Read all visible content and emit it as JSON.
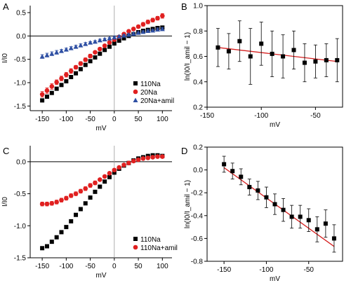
{
  "colors": {
    "black": "#000000",
    "red": "#e02020",
    "blue": "#2e4fa3",
    "fit": "#d62020"
  },
  "chart_data": [
    {
      "panel": "A",
      "type": "scatter",
      "xlabel": "mV",
      "ylabel": "I/I0",
      "xlim": [
        -175,
        120
      ],
      "ylim": [
        -1.6,
        0.65
      ],
      "xticks": [
        -150,
        -100,
        -50,
        0,
        50,
        100
      ],
      "yticks": [
        0.5,
        0.0,
        -0.5,
        -1.0,
        -1.5
      ],
      "xtick_labels": [
        "-150",
        "-100",
        "-50",
        "0",
        "50",
        "100"
      ],
      "ytick_labels": [
        "0.5",
        "0.0",
        "-0.5",
        "-1.0",
        "-1.5"
      ],
      "zero_line": true,
      "legend": "bottom-right",
      "series": [
        {
          "name": "110Na",
          "marker": "square",
          "color": "#000000",
          "x": [
            -150,
            -140,
            -130,
            -120,
            -110,
            -100,
            -90,
            -80,
            -70,
            -60,
            -50,
            -40,
            -30,
            -20,
            -10,
            0,
            10,
            20,
            30,
            40,
            50,
            60,
            70,
            80,
            90,
            100
          ],
          "y": [
            -1.38,
            -1.3,
            -1.22,
            -1.13,
            -1.05,
            -0.97,
            -0.88,
            -0.8,
            -0.71,
            -0.62,
            -0.54,
            -0.46,
            -0.38,
            -0.3,
            -0.23,
            -0.16,
            -0.1,
            -0.05,
            0.0,
            0.04,
            0.08,
            0.11,
            0.13,
            0.15,
            0.17,
            0.18
          ],
          "err": []
        },
        {
          "name": "20Na",
          "marker": "circle",
          "color": "#e02020",
          "x": [
            -150,
            -140,
            -130,
            -120,
            -110,
            -100,
            -90,
            -80,
            -70,
            -60,
            -50,
            -40,
            -30,
            -20,
            -10,
            0,
            10,
            20,
            30,
            40,
            50,
            60,
            70,
            80,
            90,
            100
          ],
          "y": [
            -1.25,
            -1.17,
            -1.08,
            -0.99,
            -0.91,
            -0.83,
            -0.75,
            -0.67,
            -0.59,
            -0.51,
            -0.43,
            -0.35,
            -0.28,
            -0.21,
            -0.14,
            -0.08,
            -0.02,
            0.04,
            0.1,
            0.15,
            0.2,
            0.25,
            0.3,
            0.34,
            0.38,
            0.43
          ],
          "err": [
            0.06,
            0.06,
            0.06,
            0.05,
            0.05,
            0.05,
            0.05,
            0.04,
            0.04,
            0.04,
            0.04,
            0.03,
            0.03,
            0.03,
            0.03,
            0.03,
            0.03,
            0.03,
            0.03,
            0.03,
            0.03,
            0.04,
            0.04,
            0.04,
            0.04,
            0.05
          ]
        },
        {
          "name": "20Na+amil",
          "marker": "triangle",
          "color": "#2e4fa3",
          "x": [
            -150,
            -140,
            -130,
            -120,
            -110,
            -100,
            -90,
            -80,
            -70,
            -60,
            -50,
            -40,
            -30,
            -20,
            -10,
            0,
            10,
            20,
            30,
            40,
            50,
            60,
            70,
            80,
            90,
            100
          ],
          "y": [
            -0.44,
            -0.41,
            -0.38,
            -0.35,
            -0.32,
            -0.29,
            -0.26,
            -0.23,
            -0.2,
            -0.17,
            -0.14,
            -0.12,
            -0.09,
            -0.07,
            -0.05,
            -0.03,
            -0.01,
            0.01,
            0.03,
            0.05,
            0.07,
            0.09,
            0.11,
            0.12,
            0.14,
            0.15
          ],
          "err": [
            0.04,
            0.04,
            0.04,
            0.04,
            0.03,
            0.03,
            0.03,
            0.03,
            0.03,
            0.03,
            0.02,
            0.02,
            0.02,
            0.02,
            0.02,
            0.02,
            0.02,
            0.02,
            0.02,
            0.02,
            0.02,
            0.02,
            0.02,
            0.02,
            0.03,
            0.03
          ]
        }
      ]
    },
    {
      "panel": "B",
      "type": "scatter",
      "xlabel": "mV",
      "ylabel": "ln(I0/I_amil − 1)",
      "xlim": [
        -150,
        -25
      ],
      "ylim": [
        0.2,
        1.0
      ],
      "xticks": [
        -150,
        -100,
        -50
      ],
      "yticks": [
        1.0,
        0.8,
        0.6,
        0.4,
        0.2
      ],
      "xtick_labels": [
        "-150",
        "-100",
        "-50"
      ],
      "ytick_labels": [
        "1.0",
        "0.8",
        "0.6",
        "0.4",
        "0.2"
      ],
      "fit_line": {
        "x": [
          -140,
          -30
        ],
        "y": [
          0.67,
          0.56
        ]
      },
      "series": [
        {
          "name": "",
          "marker": "square",
          "color": "#000000",
          "x": [
            -140,
            -130,
            -120,
            -110,
            -100,
            -90,
            -80,
            -70,
            -60,
            -50,
            -40,
            -30
          ],
          "y": [
            0.67,
            0.64,
            0.72,
            0.6,
            0.7,
            0.62,
            0.6,
            0.65,
            0.55,
            0.56,
            0.57,
            0.57
          ],
          "err": [
            0.15,
            0.14,
            0.16,
            0.22,
            0.17,
            0.18,
            0.17,
            0.15,
            0.15,
            0.13,
            0.13,
            0.17
          ]
        }
      ]
    },
    {
      "panel": "C",
      "type": "scatter",
      "xlabel": "mV",
      "ylabel": "I/I0",
      "xlim": [
        -175,
        120
      ],
      "ylim": [
        -1.5,
        0.25
      ],
      "xticks": [
        -150,
        -100,
        -50,
        0,
        50,
        100
      ],
      "yticks": [
        0.0,
        -0.5,
        -1.0,
        -1.5
      ],
      "xtick_labels": [
        "-150",
        "-100",
        "-50",
        "0",
        "50",
        "100"
      ],
      "ytick_labels": [
        "0.0",
        "-0.5",
        "-1.0",
        "-1.5"
      ],
      "zero_line": true,
      "legend": "bottom-right",
      "series": [
        {
          "name": "110Na",
          "marker": "square",
          "color": "#000000",
          "x": [
            -150,
            -140,
            -130,
            -120,
            -110,
            -100,
            -90,
            -80,
            -70,
            -60,
            -50,
            -40,
            -30,
            -20,
            -10,
            0,
            10,
            20,
            30,
            40,
            50,
            60,
            70,
            80,
            90,
            100
          ],
          "y": [
            -1.35,
            -1.32,
            -1.25,
            -1.18,
            -1.1,
            -1.02,
            -0.93,
            -0.83,
            -0.74,
            -0.65,
            -0.56,
            -0.47,
            -0.39,
            -0.31,
            -0.24,
            -0.17,
            -0.11,
            -0.06,
            -0.02,
            0.02,
            0.05,
            0.07,
            0.09,
            0.1,
            0.1,
            0.09
          ],
          "err": []
        },
        {
          "name": "110Na+amil",
          "marker": "circle",
          "color": "#e02020",
          "x": [
            -150,
            -140,
            -130,
            -120,
            -110,
            -100,
            -90,
            -80,
            -70,
            -60,
            -50,
            -40,
            -30,
            -20,
            -10,
            0,
            10,
            20,
            30,
            40,
            50,
            60,
            70,
            80,
            90,
            100
          ],
          "y": [
            -0.66,
            -0.66,
            -0.65,
            -0.63,
            -0.6,
            -0.57,
            -0.53,
            -0.5,
            -0.46,
            -0.42,
            -0.37,
            -0.33,
            -0.28,
            -0.23,
            -0.18,
            -0.13,
            -0.09,
            -0.05,
            -0.02,
            0.01,
            0.03,
            0.05,
            0.06,
            0.07,
            0.08,
            0.08
          ],
          "err": [
            0.03,
            0.03,
            0.03,
            0.03,
            0.03,
            0.03,
            0.03,
            0.03,
            0.03,
            0.03,
            0.03,
            0.03,
            0.02,
            0.02,
            0.02,
            0.02,
            0.02,
            0.02,
            0.02,
            0.02,
            0.02,
            0.02,
            0.02,
            0.02,
            0.02,
            0.02
          ]
        }
      ]
    },
    {
      "panel": "D",
      "type": "scatter",
      "xlabel": "mV",
      "ylabel": "ln(I0/I_amil − 1)",
      "xlim": [
        -170,
        -10
      ],
      "ylim": [
        -0.8,
        0.2
      ],
      "xticks": [
        -150,
        -100,
        -50
      ],
      "yticks": [
        0.2,
        0.0,
        -0.2,
        -0.4,
        -0.6,
        -0.8
      ],
      "xtick_labels": [
        "-150",
        "-100",
        "-50"
      ],
      "ytick_labels": [
        "0.2",
        "0.0",
        "-0.2",
        "-0.4",
        "-0.6",
        "-0.8"
      ],
      "fit_line": {
        "x": [
          -150,
          -20
        ],
        "y": [
          0.02,
          -0.67
        ]
      },
      "series": [
        {
          "name": "",
          "marker": "square",
          "color": "#000000",
          "x": [
            -150,
            -140,
            -130,
            -120,
            -110,
            -100,
            -90,
            -80,
            -70,
            -60,
            -50,
            -40,
            -30,
            -20
          ],
          "y": [
            0.05,
            -0.01,
            -0.06,
            -0.15,
            -0.18,
            -0.24,
            -0.3,
            -0.35,
            -0.41,
            -0.41,
            -0.44,
            -0.52,
            -0.47,
            -0.6
          ],
          "err": [
            0.07,
            0.07,
            0.07,
            0.07,
            0.08,
            0.09,
            0.09,
            0.1,
            0.1,
            0.1,
            0.1,
            0.11,
            0.12,
            0.12
          ]
        }
      ]
    }
  ]
}
